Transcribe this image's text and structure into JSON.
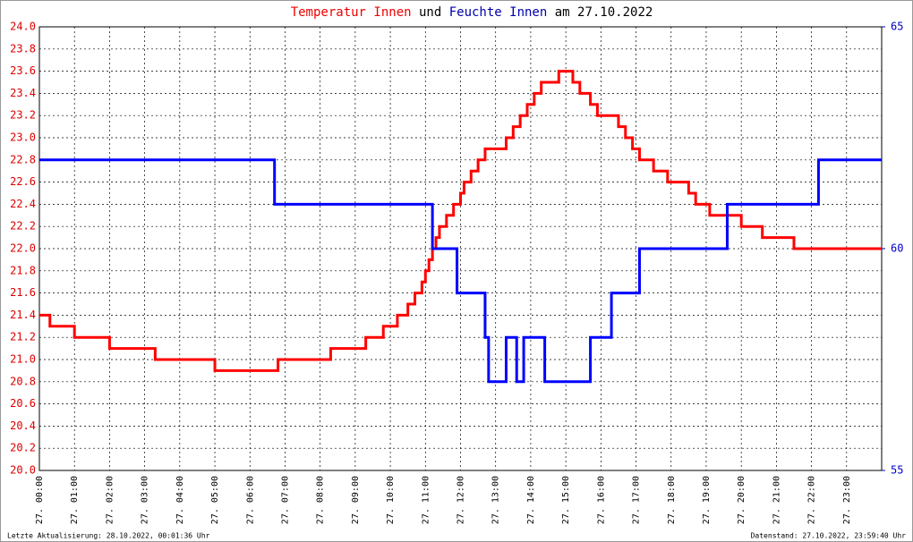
{
  "chart_data": {
    "type": "line",
    "title_connector": "und",
    "title_suffix": "am 27.10.2022",
    "footer_left": "Letzte Aktualisierung: 28.10.2022, 00:01:36 Uhr",
    "footer_right": "Datenstand: 27.10.2022, 23:59:40 Uhr",
    "drawstyle": "steps-post",
    "grid": true,
    "xlim": [
      0,
      24
    ],
    "xticks": [
      {
        "value": 0,
        "label": "27. 00:00"
      },
      {
        "value": 1,
        "label": "27. 01:00"
      },
      {
        "value": 2,
        "label": "27. 02:00"
      },
      {
        "value": 3,
        "label": "27. 03:00"
      },
      {
        "value": 4,
        "label": "27. 04:00"
      },
      {
        "value": 5,
        "label": "27. 05:00"
      },
      {
        "value": 6,
        "label": "27. 06:00"
      },
      {
        "value": 7,
        "label": "27. 07:00"
      },
      {
        "value": 8,
        "label": "27. 08:00"
      },
      {
        "value": 9,
        "label": "27. 09:00"
      },
      {
        "value": 10,
        "label": "27. 10:00"
      },
      {
        "value": 11,
        "label": "27. 11:00"
      },
      {
        "value": 12,
        "label": "27. 12:00"
      },
      {
        "value": 13,
        "label": "27. 13:00"
      },
      {
        "value": 14,
        "label": "27. 14:00"
      },
      {
        "value": 15,
        "label": "27. 15:00"
      },
      {
        "value": 16,
        "label": "27. 16:00"
      },
      {
        "value": 17,
        "label": "27. 17:00"
      },
      {
        "value": 18,
        "label": "27. 18:00"
      },
      {
        "value": 19,
        "label": "27. 19:00"
      },
      {
        "value": 20,
        "label": "27. 20:00"
      },
      {
        "value": 21,
        "label": "27. 21:00"
      },
      {
        "value": 22,
        "label": "27. 22:00"
      },
      {
        "value": 23,
        "label": "27. 23:00"
      }
    ],
    "ylim": [
      20,
      24
    ],
    "yticks": [
      {
        "value": 20,
        "label": "20.0"
      },
      {
        "value": 20.2,
        "label": "20.2"
      },
      {
        "value": 20.4,
        "label": "20.4"
      },
      {
        "value": 20.6,
        "label": "20.6"
      },
      {
        "value": 20.8,
        "label": "20.8"
      },
      {
        "value": 21,
        "label": "21.0"
      },
      {
        "value": 21.2,
        "label": "21.2"
      },
      {
        "value": 21.4,
        "label": "21.4"
      },
      {
        "value": 21.6,
        "label": "21.6"
      },
      {
        "value": 21.8,
        "label": "21.8"
      },
      {
        "value": 22,
        "label": "22.0"
      },
      {
        "value": 22.2,
        "label": "22.2"
      },
      {
        "value": 22.4,
        "label": "22.4"
      },
      {
        "value": 22.6,
        "label": "22.6"
      },
      {
        "value": 22.8,
        "label": "22.8"
      },
      {
        "value": 23,
        "label": "23.0"
      },
      {
        "value": 23.2,
        "label": "23.2"
      },
      {
        "value": 23.4,
        "label": "23.4"
      },
      {
        "value": 23.6,
        "label": "23.6"
      },
      {
        "value": 23.8,
        "label": "23.8"
      },
      {
        "value": 24,
        "label": "24.0"
      }
    ],
    "y2lim": [
      55,
      65
    ],
    "y2ticks": [
      55,
      60,
      65
    ],
    "series": [
      {
        "name": "Temperatur Innen",
        "color": "#ff0000",
        "x": [
          0,
          0.3,
          1.0,
          2.0,
          3.3,
          5.0,
          6.8,
          8.3,
          9.3,
          9.8,
          10.2,
          10.5,
          10.7,
          10.9,
          11.0,
          11.1,
          11.2,
          11.3,
          11.4,
          11.6,
          11.8,
          12.0,
          12.1,
          12.3,
          12.5,
          12.7,
          13.3,
          13.5,
          13.7,
          13.9,
          14.1,
          14.3,
          14.8,
          15.2,
          15.4,
          15.7,
          15.9,
          16.5,
          16.7,
          16.9,
          17.1,
          17.5,
          17.9,
          18.5,
          18.7,
          19.1,
          20.0,
          20.6,
          21.5,
          24
        ],
        "values": [
          21.4,
          21.3,
          21.2,
          21.1,
          21.0,
          20.9,
          21.0,
          21.1,
          21.2,
          21.3,
          21.4,
          21.5,
          21.6,
          21.7,
          21.8,
          21.9,
          22.0,
          22.1,
          22.2,
          22.3,
          22.4,
          22.5,
          22.6,
          22.7,
          22.8,
          22.9,
          23.0,
          23.1,
          23.2,
          23.3,
          23.4,
          23.5,
          23.6,
          23.5,
          23.4,
          23.3,
          23.2,
          23.1,
          23.0,
          22.9,
          22.8,
          22.7,
          22.6,
          22.5,
          22.4,
          22.3,
          22.2,
          22.1,
          22.0,
          22.0
        ]
      },
      {
        "name": "Feuchte Innen",
        "color": "#0000ff",
        "axis": "y2",
        "x": [
          0,
          6.7,
          11.2,
          11.9,
          12.7,
          12.8,
          13.3,
          13.6,
          13.8,
          14.4,
          15.7,
          16.3,
          17.1,
          19.6,
          22.2,
          24
        ],
        "values": [
          62,
          61,
          60,
          59,
          58,
          57,
          58,
          57,
          58,
          57,
          58,
          59,
          60,
          61,
          62,
          62
        ]
      }
    ]
  }
}
